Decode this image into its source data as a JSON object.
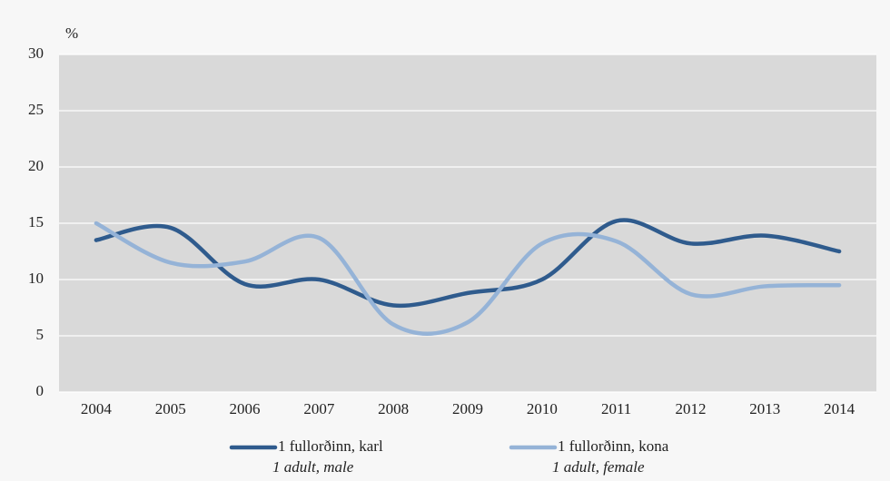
{
  "chart_data": {
    "type": "line",
    "y_axis_label": "%",
    "categories": [
      "2004",
      "2005",
      "2006",
      "2007",
      "2008",
      "2009",
      "2010",
      "2011",
      "2012",
      "2013",
      "2014"
    ],
    "series": [
      {
        "name": "1 fullorðinn, karl",
        "name_en": "1 adult, male",
        "color": "#2f5b8d",
        "values": [
          13.5,
          14.6,
          9.6,
          10.0,
          7.7,
          8.8,
          10.0,
          15.2,
          13.2,
          13.9,
          12.5
        ]
      },
      {
        "name": "1 fullorðinn, kona",
        "name_en": "1 adult, female",
        "color": "#95b3d7",
        "values": [
          15.0,
          11.5,
          11.6,
          13.7,
          6.0,
          6.2,
          13.2,
          13.4,
          8.7,
          9.4,
          9.5
        ]
      }
    ],
    "ylim": [
      0,
      30
    ],
    "yticks": [
      0,
      5,
      10,
      15,
      20,
      25,
      30
    ],
    "grid": true,
    "smooth": true,
    "legend": "bottom"
  }
}
